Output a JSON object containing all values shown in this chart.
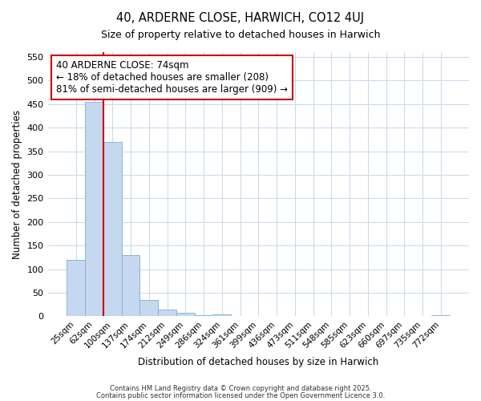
{
  "title1": "40, ARDERNE CLOSE, HARWICH, CO12 4UJ",
  "title2": "Size of property relative to detached houses in Harwich",
  "xlabel": "Distribution of detached houses by size in Harwich",
  "ylabel": "Number of detached properties",
  "categories": [
    "25sqm",
    "62sqm",
    "100sqm",
    "137sqm",
    "174sqm",
    "212sqm",
    "249sqm",
    "286sqm",
    "324sqm",
    "361sqm",
    "399sqm",
    "436sqm",
    "473sqm",
    "511sqm",
    "548sqm",
    "585sqm",
    "623sqm",
    "660sqm",
    "697sqm",
    "735sqm",
    "772sqm"
  ],
  "values": [
    120,
    455,
    370,
    130,
    35,
    15,
    8,
    3,
    5,
    0,
    0,
    0,
    0,
    0,
    0,
    0,
    0,
    0,
    0,
    0,
    3
  ],
  "bar_color": "#c5d8f0",
  "bar_edge_color": "#7bafd4",
  "grid_color": "#c8d8ec",
  "background_color": "#ffffff",
  "annotation_title": "40 ARDERNE CLOSE: 74sqm",
  "annotation_line1": "← 18% of detached houses are smaller (208)",
  "annotation_line2": "81% of semi-detached houses are larger (909) →",
  "annotation_box_color": "#ffffff",
  "annotation_box_edge": "#cc0000",
  "red_line_color": "#cc0000",
  "ylim": [
    0,
    560
  ],
  "yticks": [
    0,
    50,
    100,
    150,
    200,
    250,
    300,
    350,
    400,
    450,
    500,
    550
  ],
  "footer1": "Contains HM Land Registry data © Crown copyright and database right 2025.",
  "footer2": "Contains public sector information licensed under the Open Government Licence 3.0."
}
